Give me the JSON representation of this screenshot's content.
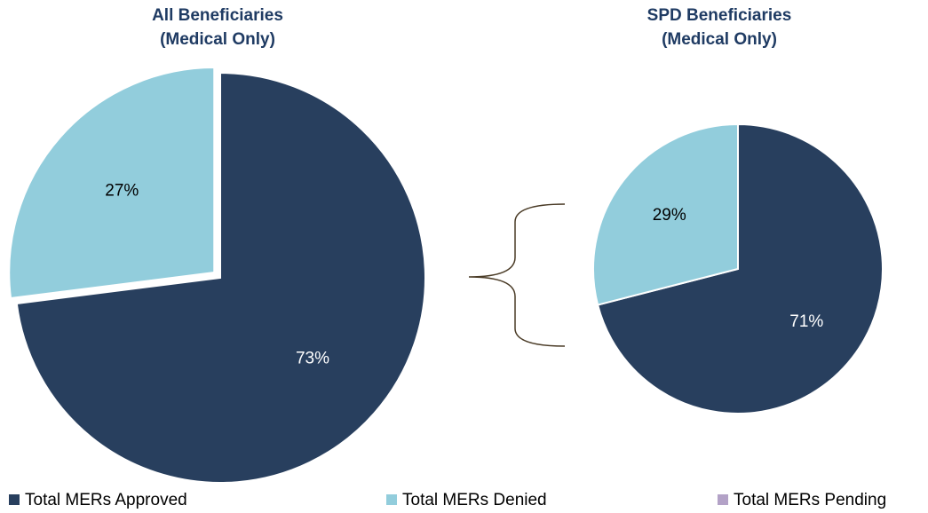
{
  "chart_data": [
    {
      "type": "pie",
      "title": [
        "All Beneficiaries",
        "(Medical Only)"
      ],
      "categories": [
        "Total MERs Approved",
        "Total MERs Denied",
        "Total MERs Pending"
      ],
      "values": [
        73,
        27,
        0
      ],
      "value_labels": [
        "73%",
        "27%",
        null
      ],
      "colors": [
        "#283f5e",
        "#92cddc",
        "#b3a2c7"
      ],
      "legend": "bottom"
    },
    {
      "type": "pie",
      "title": [
        "SPD Beneficiaries",
        "(Medical Only)"
      ],
      "categories": [
        "Total MERs Approved",
        "Total MERs Denied",
        "Total MERs Pending"
      ],
      "values": [
        71,
        29,
        0
      ],
      "value_labels": [
        "71%",
        "29%",
        null
      ],
      "colors": [
        "#283f5e",
        "#92cddc",
        "#b3a2c7"
      ]
    }
  ]
}
